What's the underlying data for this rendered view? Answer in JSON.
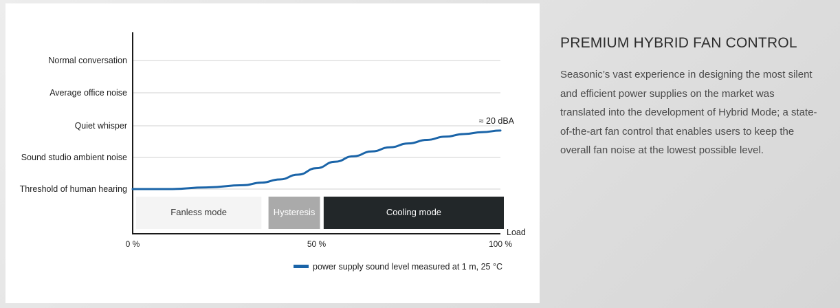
{
  "chart_data": {
    "type": "line",
    "y_categories": [
      "Normal conversation",
      "Average office noise",
      "Quiet whisper",
      "Sound studio ambient noise",
      "Threshold of human hearing"
    ],
    "x_ticks": [
      "0 %",
      "50 %",
      "100 %"
    ],
    "xlabel": "Load",
    "xlim": [
      0,
      100
    ],
    "grid": true,
    "series": [
      {
        "name": "power supply sound level measured at 1 m, 25 °C",
        "color": "#1a64a8",
        "x": [
          0,
          10,
          20,
          30,
          35,
          40,
          45,
          50,
          55,
          60,
          65,
          70,
          75,
          80,
          85,
          90,
          95,
          100
        ],
        "y": [
          0.0,
          0.0,
          0.05,
          0.12,
          0.2,
          0.3,
          0.45,
          0.65,
          0.85,
          1.02,
          1.17,
          1.3,
          1.42,
          1.53,
          1.63,
          1.71,
          1.77,
          1.82
        ]
      }
    ],
    "annotation": "≈ 20 dBA",
    "modes": [
      {
        "label": "Fanless mode",
        "from": 0,
        "to": 35,
        "bg": "#f4f4f4",
        "fg": "#3a3a3a"
      },
      {
        "label": "Hysteresis",
        "from": 36,
        "to": 50,
        "bg": "#aaaaaa",
        "fg": "#ffffff"
      },
      {
        "label": "Cooling mode",
        "from": 51,
        "to": 100,
        "bg": "#222729",
        "fg": "#ffffff"
      }
    ]
  },
  "info": {
    "title": "PREMIUM HYBRID FAN CONTROL",
    "body": "Seasonic’s vast experience in designing the most silent and efficient power supplies on the market was translated into the development of Hybrid Mode; a state-of-the-art fan control that enables users to keep the overall fan noise at the lowest possible level."
  }
}
